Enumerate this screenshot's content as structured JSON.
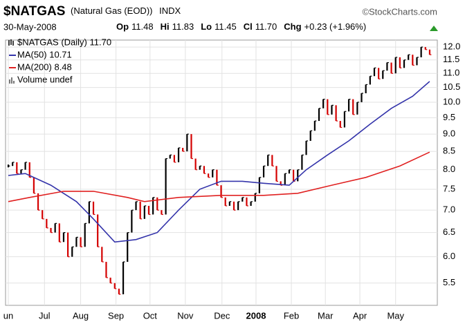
{
  "header": {
    "symbol": "$NATGAS",
    "name": "(Natural Gas (EOD))",
    "exchange": "INDX",
    "copyright": "©StockCharts.com",
    "date": "30-May-2008",
    "quote": [
      {
        "label": "Op",
        "value": "11.48"
      },
      {
        "label": "Hi",
        "value": "11.83"
      },
      {
        "label": "Lo",
        "value": "11.45"
      },
      {
        "label": "Cl",
        "value": "11.70"
      },
      {
        "label": "Chg",
        "value": "+0.23 (+1.96%)"
      }
    ]
  },
  "chart_data": {
    "type": "stock",
    "log": true,
    "grid": true,
    "legend": "top-left",
    "ylim": [
      5.11,
      12.28
    ],
    "yticks": [
      {
        "value": 12,
        "label": "12.0"
      },
      11.5,
      {
        "value": 11,
        "label": "11.0"
      },
      10.5,
      {
        "value": 10,
        "label": "10.0"
      },
      9.5,
      {
        "value": 9,
        "label": "9.0"
      },
      8.5,
      {
        "value": 8,
        "label": "8.0"
      },
      7.5,
      {
        "value": 7,
        "label": "7.0"
      },
      6.5,
      {
        "value": 6,
        "label": "6.0"
      },
      5.5
    ],
    "xlim": [
      -0.65,
      100.8
    ],
    "xticks": [
      {
        "value": 0,
        "label": "un"
      },
      {
        "value": 8.5,
        "label": "Jul"
      },
      {
        "value": 17,
        "label": "Aug"
      },
      {
        "value": 25.3,
        "label": "Sep"
      },
      {
        "value": 33.3,
        "label": "Oct"
      },
      {
        "value": 41.6,
        "label": "Nov"
      },
      {
        "value": 50.2,
        "label": "Dec"
      },
      {
        "value": 58.2,
        "label": "2008"
      },
      {
        "value": 66.5,
        "label": "Feb"
      },
      {
        "value": 74.5,
        "label": "Mar"
      },
      {
        "value": 82.6,
        "label": "Apr"
      },
      {
        "value": 91,
        "label": "May"
      }
    ],
    "price": {
      "name": "$NATGAS (Daily) 11.70",
      "up_color": "#000000",
      "down_color": "#d40000",
      "values": [
        8.1,
        8.2,
        7.9,
        8.0,
        8.2,
        7.8,
        7.4,
        7.0,
        6.8,
        6.6,
        6.5,
        6.7,
        6.3,
        6.5,
        6.0,
        6.2,
        6.4,
        6.2,
        6.7,
        7.2,
        6.9,
        6.2,
        5.9,
        5.6,
        5.5,
        5.4,
        5.3,
        5.9,
        6.5,
        7.0,
        7.2,
        6.8,
        7.1,
        6.9,
        7.3,
        7.0,
        6.9,
        8.3,
        8.4,
        8.2,
        8.6,
        8.5,
        9.0,
        8.3,
        8.0,
        8.1,
        7.9,
        7.8,
        8.0,
        7.6,
        7.3,
        7.1,
        7.2,
        7.0,
        7.2,
        7.3,
        7.1,
        7.2,
        7.4,
        7.8,
        8.1,
        8.4,
        8.1,
        7.7,
        7.6,
        7.9,
        8.0,
        7.7,
        8.0,
        8.4,
        8.8,
        9.1,
        9.4,
        9.8,
        10.1,
        9.6,
        9.9,
        9.4,
        9.2,
        9.7,
        10.1,
        9.6,
        10.0,
        10.3,
        10.6,
        10.9,
        11.2,
        10.8,
        11.1,
        11.4,
        11.0,
        11.6,
        11.2,
        11.5,
        11.7,
        11.3,
        11.6,
        12.0,
        11.9,
        11.7
      ]
    },
    "series": [
      {
        "name": "MA(50) 10.71",
        "color": "#3333aa",
        "x": [
          0,
          4,
          10,
          16,
          20,
          25,
          30,
          35,
          40,
          45,
          50,
          55,
          60,
          66,
          70,
          75,
          80,
          85,
          90,
          95,
          99
        ],
        "values": [
          7.85,
          7.9,
          7.6,
          7.2,
          6.8,
          6.3,
          6.35,
          6.5,
          7.0,
          7.5,
          7.7,
          7.7,
          7.65,
          7.6,
          8.0,
          8.4,
          8.8,
          9.3,
          9.8,
          10.2,
          10.71
        ]
      },
      {
        "name": "MA(200) 8.48",
        "color": "#e02020",
        "x": [
          0,
          5,
          13,
          20,
          28,
          32,
          40,
          50,
          60,
          68,
          76,
          84,
          92,
          99
        ],
        "values": [
          7.2,
          7.3,
          7.45,
          7.45,
          7.3,
          7.2,
          7.3,
          7.35,
          7.35,
          7.4,
          7.6,
          7.8,
          8.1,
          8.48
        ]
      }
    ],
    "volume_label": "Volume undef"
  }
}
